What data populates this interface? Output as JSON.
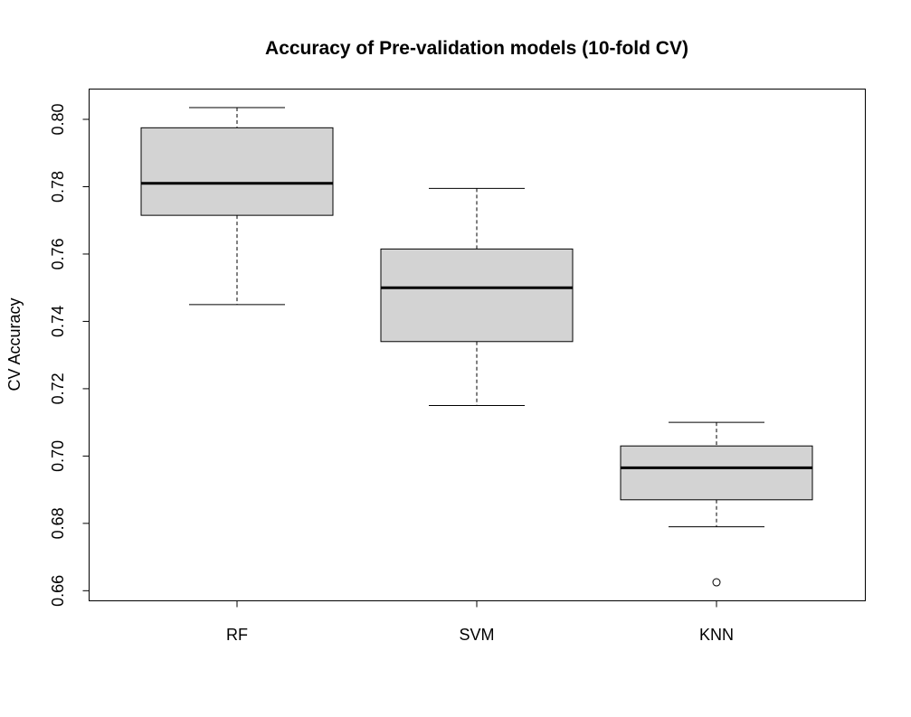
{
  "chart_data": {
    "type": "boxplot",
    "title": "Accuracy of Pre-validation models (10-fold CV)",
    "xlabel": "",
    "ylabel": "CV Accuracy",
    "ylim": [
      0.657,
      0.809
    ],
    "yticks": [
      0.66,
      0.68,
      0.7,
      0.72,
      0.74,
      0.76,
      0.78,
      0.8
    ],
    "ytick_labels": [
      "0.66",
      "0.68",
      "0.70",
      "0.72",
      "0.74",
      "0.76",
      "0.78",
      "0.80"
    ],
    "categories": [
      "RF",
      "SVM",
      "KNN"
    ],
    "boxes": [
      {
        "name": "RF",
        "whisker_low": 0.745,
        "q1": 0.7715,
        "median": 0.781,
        "q3": 0.7975,
        "whisker_high": 0.8035,
        "outliers": []
      },
      {
        "name": "SVM",
        "whisker_low": 0.715,
        "q1": 0.734,
        "median": 0.75,
        "q3": 0.7615,
        "whisker_high": 0.7795,
        "outliers": []
      },
      {
        "name": "KNN",
        "whisker_low": 0.679,
        "q1": 0.687,
        "median": 0.6965,
        "q3": 0.703,
        "whisker_high": 0.71,
        "outliers": [
          0.6625
        ]
      }
    ],
    "box_fill": "#d3d3d3",
    "grid": false,
    "legend": "none"
  }
}
